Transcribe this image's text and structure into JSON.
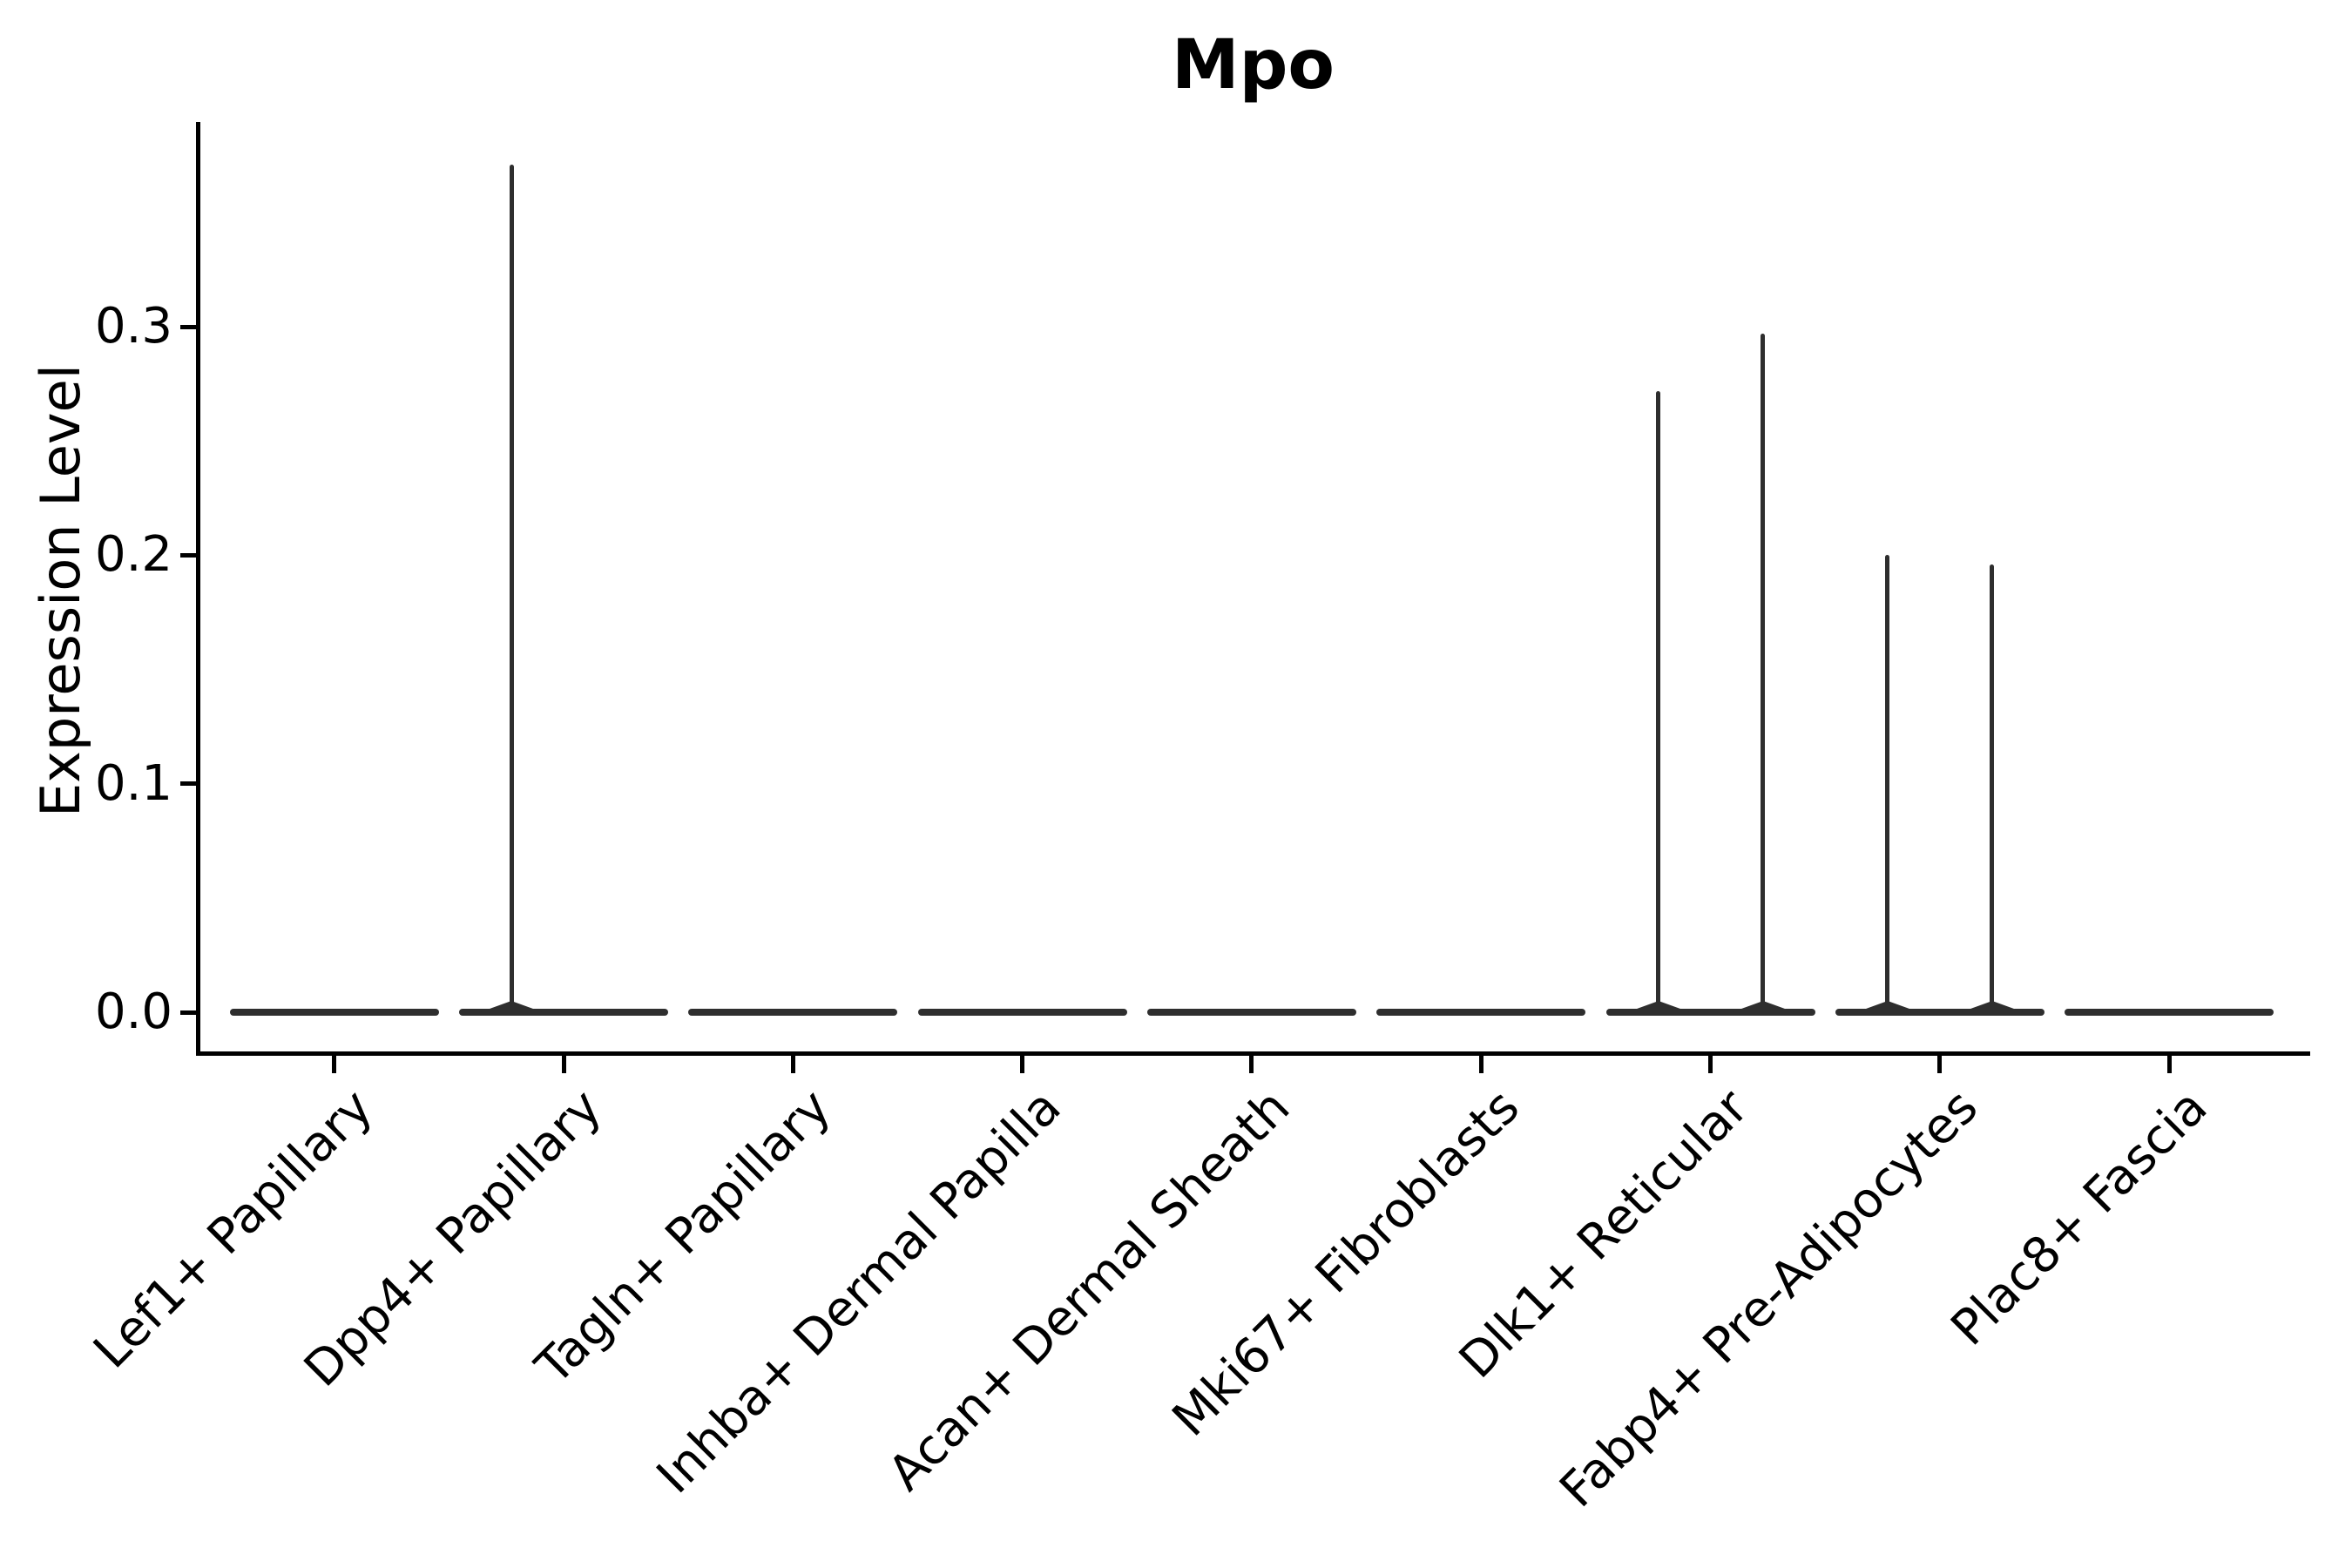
{
  "chart_data": {
    "type": "violin",
    "title": "Mpo",
    "ylabel": "Expression Level",
    "xlabel": "",
    "background_color": "#ffffff",
    "axis_color": "#000000",
    "violin_color": "#2e2e2e",
    "grid": false,
    "legend": "none",
    "ylim": [
      -0.018,
      0.39
    ],
    "yticks": [
      {
        "value": 0.0,
        "label": "0.0"
      },
      {
        "value": 0.1,
        "label": "0.1"
      },
      {
        "value": 0.2,
        "label": "0.2"
      },
      {
        "value": 0.3,
        "label": "0.3"
      }
    ],
    "violins_per_category": 2,
    "dodge_offset_category_units": 0.225,
    "series": [
      {
        "category": "Lef1+ Papillary",
        "peaks": [
          0,
          0
        ]
      },
      {
        "category": "Dpp4+ Papillary",
        "peaks": [
          0.371,
          0
        ]
      },
      {
        "category": "Tagln+ Papillary",
        "peaks": [
          0,
          0
        ]
      },
      {
        "category": "Inhba+ Dermal Papilla",
        "peaks": [
          0,
          0
        ]
      },
      {
        "category": "Acan+ Dermal Sheath",
        "peaks": [
          0,
          0
        ]
      },
      {
        "category": "Mki67+ Fibroblasts",
        "peaks": [
          0,
          0
        ]
      },
      {
        "category": "Dlk1+ Reticular",
        "peaks": [
          0.272,
          0.297
        ]
      },
      {
        "category": "Fabp4+ Pre-Adipocytes",
        "peaks": [
          0.2,
          0.196
        ]
      },
      {
        "category": "Plac8+ Fascia",
        "peaks": [
          0,
          0
        ]
      }
    ]
  }
}
